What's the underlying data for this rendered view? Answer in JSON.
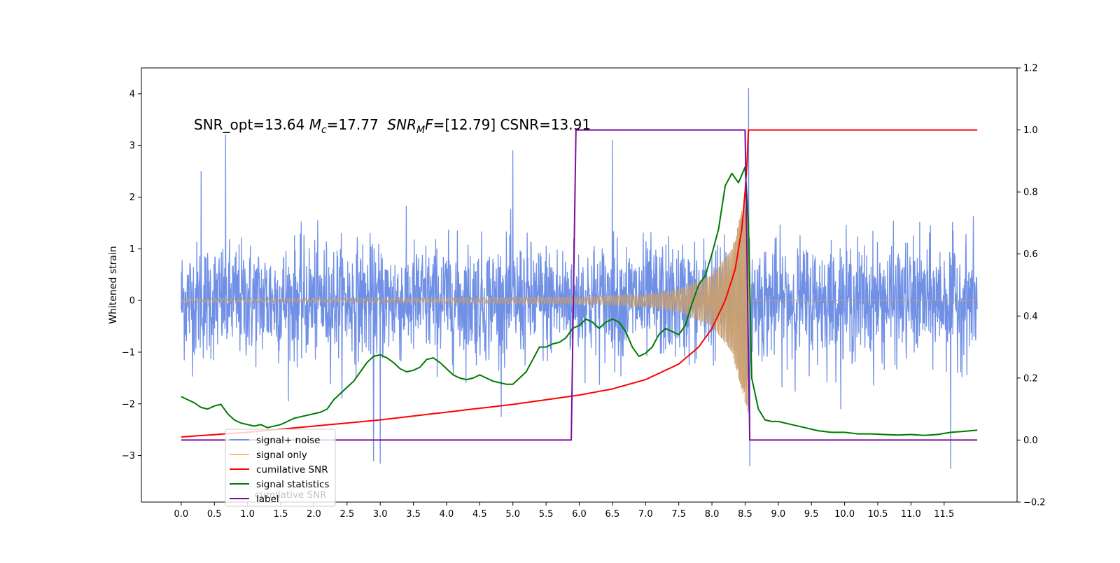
{
  "chart_data": {
    "type": "line",
    "ylabel": "Whitened strain",
    "annotation": {
      "prefix": "SNR_opt=13.64 ",
      "mc_symbol": "M",
      "mc_sub": "c",
      "mc_value": "=17.77  ",
      "mf_symbol": "SNR",
      "mf_sub": "M",
      "mf_symbol2": "F",
      "mf_value": "=[12.79] CSNR=13.91"
    },
    "x_ticks": [
      "0.0",
      "0.5",
      "1.0",
      "1.5",
      "2.0",
      "2.5",
      "3.0",
      "3.5",
      "4.0",
      "4.5",
      "5.0",
      "5.5",
      "6.0",
      "6.5",
      "7.0",
      "7.5",
      "8.0",
      "8.5",
      "9.0",
      "9.5",
      "10.0",
      "10.5",
      "11.0",
      "11.5"
    ],
    "x_tick_values": [
      0,
      0.5,
      1,
      1.5,
      2,
      2.5,
      3,
      3.5,
      4,
      4.5,
      5,
      5.5,
      6,
      6.5,
      7,
      7.5,
      8,
      8.5,
      9,
      9.5,
      10,
      10.5,
      11,
      11.5
    ],
    "xlim": [
      -0.6,
      12.6
    ],
    "y_left_ticks": [
      "−3",
      "−2",
      "−1",
      "0",
      "1",
      "2",
      "3",
      "4"
    ],
    "y_left_values": [
      -3,
      -2,
      -1,
      0,
      1,
      2,
      3,
      4
    ],
    "ylim_left": [
      -3.9,
      4.5
    ],
    "y_right_ticks": [
      "−0.2",
      "0.0",
      "0.2",
      "0.4",
      "0.6",
      "0.8",
      "1.0",
      "1.2"
    ],
    "y_right_values": [
      -0.2,
      0,
      0.2,
      0.4,
      0.6,
      0.8,
      1.0,
      1.2
    ],
    "ylim_right": [
      -0.2,
      1.2
    ],
    "colors": {
      "noise": "#7090e6",
      "signal": "#f5c26b",
      "signal_fill": "#c8a070",
      "cumulative": "#ff0000",
      "statistics": "#007a00",
      "label": "#7b0d9c"
    },
    "series": [
      {
        "name": "signal+ noise",
        "x_range": [
          0,
          12
        ],
        "typical_amplitude": 1.8,
        "spikes": [
          [
            0.67,
            3.2
          ],
          [
            8.55,
            4.1
          ],
          [
            8.57,
            -3.2
          ],
          [
            11.6,
            -3.25
          ],
          [
            2.9,
            -3.1
          ],
          [
            3.0,
            -3.15
          ],
          [
            0.3,
            2.5
          ],
          [
            6.5,
            3.1
          ],
          [
            5.0,
            2.9
          ]
        ]
      },
      {
        "name": "signal only",
        "x_range": [
          0,
          8.55
        ],
        "envelope": [
          [
            0,
            0.03
          ],
          [
            4,
            0.05
          ],
          [
            6,
            0.07
          ],
          [
            7,
            0.12
          ],
          [
            7.5,
            0.22
          ],
          [
            8.0,
            0.5
          ],
          [
            8.3,
            1.0
          ],
          [
            8.5,
            2.0
          ],
          [
            8.55,
            2.2
          ]
        ]
      },
      {
        "name": "cumilative SNR",
        "axis": "right",
        "points": [
          [
            0,
            0.01
          ],
          [
            1,
            0.025
          ],
          [
            2,
            0.045
          ],
          [
            3,
            0.065
          ],
          [
            4,
            0.09
          ],
          [
            5,
            0.115
          ],
          [
            5.5,
            0.13
          ],
          [
            6,
            0.145
          ],
          [
            6.5,
            0.165
          ],
          [
            7,
            0.195
          ],
          [
            7.5,
            0.245
          ],
          [
            7.8,
            0.3
          ],
          [
            8.0,
            0.36
          ],
          [
            8.2,
            0.45
          ],
          [
            8.35,
            0.55
          ],
          [
            8.45,
            0.68
          ],
          [
            8.5,
            0.8
          ],
          [
            8.53,
            0.9
          ],
          [
            8.55,
            1.0
          ],
          [
            12,
            1.0
          ]
        ]
      },
      {
        "name": "signal statistics",
        "axis": "right",
        "points": [
          [
            0,
            0.14
          ],
          [
            0.1,
            0.13
          ],
          [
            0.2,
            0.12
          ],
          [
            0.3,
            0.105
          ],
          [
            0.4,
            0.1
          ],
          [
            0.5,
            0.11
          ],
          [
            0.6,
            0.115
          ],
          [
            0.7,
            0.085
          ],
          [
            0.8,
            0.065
          ],
          [
            0.9,
            0.055
          ],
          [
            1.0,
            0.05
          ],
          [
            1.1,
            0.045
          ],
          [
            1.2,
            0.05
          ],
          [
            1.3,
            0.04
          ],
          [
            1.5,
            0.05
          ],
          [
            1.6,
            0.06
          ],
          [
            1.7,
            0.07
          ],
          [
            1.8,
            0.075
          ],
          [
            1.9,
            0.08
          ],
          [
            2.0,
            0.085
          ],
          [
            2.1,
            0.09
          ],
          [
            2.2,
            0.1
          ],
          [
            2.3,
            0.13
          ],
          [
            2.4,
            0.15
          ],
          [
            2.5,
            0.17
          ],
          [
            2.6,
            0.19
          ],
          [
            2.7,
            0.22
          ],
          [
            2.8,
            0.25
          ],
          [
            2.9,
            0.27
          ],
          [
            3.0,
            0.275
          ],
          [
            3.1,
            0.265
          ],
          [
            3.2,
            0.25
          ],
          [
            3.3,
            0.23
          ],
          [
            3.4,
            0.22
          ],
          [
            3.5,
            0.225
          ],
          [
            3.6,
            0.235
          ],
          [
            3.7,
            0.26
          ],
          [
            3.8,
            0.265
          ],
          [
            3.9,
            0.25
          ],
          [
            4.0,
            0.23
          ],
          [
            4.1,
            0.21
          ],
          [
            4.2,
            0.2
          ],
          [
            4.3,
            0.195
          ],
          [
            4.4,
            0.2
          ],
          [
            4.5,
            0.21
          ],
          [
            4.6,
            0.2
          ],
          [
            4.7,
            0.19
          ],
          [
            4.8,
            0.185
          ],
          [
            4.9,
            0.18
          ],
          [
            5.0,
            0.18
          ],
          [
            5.1,
            0.2
          ],
          [
            5.2,
            0.22
          ],
          [
            5.3,
            0.26
          ],
          [
            5.4,
            0.3
          ],
          [
            5.5,
            0.3
          ],
          [
            5.6,
            0.31
          ],
          [
            5.7,
            0.315
          ],
          [
            5.8,
            0.33
          ],
          [
            5.9,
            0.36
          ],
          [
            6.0,
            0.37
          ],
          [
            6.1,
            0.39
          ],
          [
            6.2,
            0.38
          ],
          [
            6.3,
            0.36
          ],
          [
            6.4,
            0.38
          ],
          [
            6.5,
            0.39
          ],
          [
            6.6,
            0.38
          ],
          [
            6.7,
            0.35
          ],
          [
            6.8,
            0.3
          ],
          [
            6.9,
            0.27
          ],
          [
            7.0,
            0.28
          ],
          [
            7.1,
            0.3
          ],
          [
            7.2,
            0.34
          ],
          [
            7.3,
            0.36
          ],
          [
            7.4,
            0.35
          ],
          [
            7.5,
            0.34
          ],
          [
            7.6,
            0.37
          ],
          [
            7.7,
            0.44
          ],
          [
            7.8,
            0.5
          ],
          [
            7.9,
            0.53
          ],
          [
            8.0,
            0.6
          ],
          [
            8.1,
            0.68
          ],
          [
            8.2,
            0.82
          ],
          [
            8.3,
            0.86
          ],
          [
            8.4,
            0.83
          ],
          [
            8.5,
            0.88
          ],
          [
            8.55,
            0.7
          ],
          [
            8.6,
            0.2
          ],
          [
            8.7,
            0.1
          ],
          [
            8.8,
            0.065
          ],
          [
            8.9,
            0.06
          ],
          [
            9.0,
            0.06
          ],
          [
            9.2,
            0.05
          ],
          [
            9.4,
            0.04
          ],
          [
            9.6,
            0.03
          ],
          [
            9.8,
            0.025
          ],
          [
            10.0,
            0.025
          ],
          [
            10.2,
            0.02
          ],
          [
            10.4,
            0.02
          ],
          [
            10.6,
            0.018
          ],
          [
            10.8,
            0.016
          ],
          [
            11.0,
            0.018
          ],
          [
            11.2,
            0.015
          ],
          [
            11.4,
            0.018
          ],
          [
            11.6,
            0.025
          ],
          [
            11.8,
            0.028
          ],
          [
            12.0,
            0.032
          ]
        ]
      },
      {
        "name": "label",
        "axis": "right",
        "points": [
          [
            0,
            0.0
          ],
          [
            5.88,
            0.0
          ],
          [
            5.95,
            1.0
          ],
          [
            8.5,
            1.0
          ],
          [
            8.57,
            0.0
          ],
          [
            12,
            0.0
          ]
        ]
      }
    ],
    "legend": {
      "placement": "lower-left",
      "entries": [
        "signal+ noise",
        "signal only",
        "cumilative SNR",
        "signal statistics",
        "label"
      ],
      "overlapped_text": "cumilative SNR"
    },
    "grid": false
  }
}
